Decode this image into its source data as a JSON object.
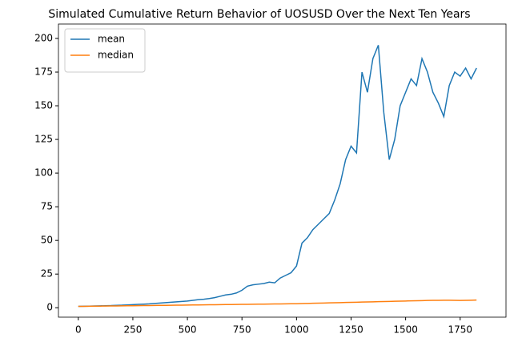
{
  "chart_data": {
    "type": "line",
    "title": "Simulated Cumulative Return Behavior of UOSUSD Over the Next Ten Years",
    "x": [
      0,
      25,
      50,
      75,
      100,
      125,
      150,
      175,
      200,
      225,
      250,
      275,
      300,
      325,
      350,
      375,
      400,
      425,
      450,
      475,
      500,
      525,
      550,
      575,
      600,
      625,
      650,
      675,
      700,
      725,
      750,
      775,
      800,
      825,
      850,
      875,
      900,
      925,
      950,
      975,
      1000,
      1025,
      1050,
      1075,
      1100,
      1125,
      1150,
      1175,
      1200,
      1225,
      1250,
      1275,
      1300,
      1325,
      1350,
      1375,
      1400,
      1425,
      1450,
      1475,
      1500,
      1525,
      1550,
      1575,
      1600,
      1625,
      1650,
      1675,
      1700,
      1725,
      1750,
      1775,
      1800,
      1825
    ],
    "series": [
      {
        "name": "mean",
        "color": "#1f77b4",
        "values": [
          1,
          1.1,
          1.2,
          1.3,
          1.4,
          1.5,
          1.6,
          1.8,
          1.9,
          2.1,
          2.3,
          2.5,
          2.7,
          2.9,
          3.2,
          3.5,
          3.8,
          4.1,
          4.4,
          4.7,
          5.0,
          5.5,
          6,
          6.3,
          6.8,
          7.5,
          8.5,
          9.5,
          10,
          11,
          13,
          16,
          17,
          17.5,
          18,
          19,
          18.5,
          22,
          24,
          26,
          31,
          48,
          52,
          58,
          62,
          66,
          70,
          80,
          92,
          110,
          120,
          115,
          175,
          160,
          185,
          195,
          145,
          110,
          125,
          150,
          160,
          170,
          165,
          185,
          175,
          160,
          152,
          142,
          165,
          175,
          172,
          178,
          170,
          178
        ]
      },
      {
        "name": "median",
        "color": "#ff7f0e",
        "values": [
          1,
          1.05,
          1.1,
          1.15,
          1.2,
          1.25,
          1.3,
          1.35,
          1.4,
          1.45,
          1.5,
          1.55,
          1.6,
          1.65,
          1.7,
          1.75,
          1.8,
          1.85,
          1.9,
          1.95,
          2.0,
          2.05,
          2.1,
          2.15,
          2.2,
          2.25,
          2.3,
          2.35,
          2.4,
          2.45,
          2.5,
          2.55,
          2.6,
          2.65,
          2.7,
          2.75,
          2.8,
          2.85,
          2.9,
          2.95,
          3.0,
          3.1,
          3.2,
          3.3,
          3.4,
          3.5,
          3.6,
          3.7,
          3.8,
          3.9,
          4.0,
          4.1,
          4.2,
          4.3,
          4.4,
          4.5,
          4.6,
          4.7,
          4.8,
          4.9,
          5.0,
          5.1,
          5.2,
          5.3,
          5.4,
          5.5,
          5.5,
          5.6,
          5.6,
          5.5,
          5.4,
          5.5,
          5.6,
          5.7
        ]
      }
    ],
    "xlim": [
      -91,
      1960
    ],
    "ylim": [
      -7,
      210.7
    ],
    "xticks": [
      0,
      250,
      500,
      750,
      1000,
      1250,
      1500,
      1750
    ],
    "yticks": [
      0,
      25,
      50,
      75,
      100,
      125,
      150,
      175,
      200
    ],
    "legend": "upper left",
    "grid": false
  }
}
